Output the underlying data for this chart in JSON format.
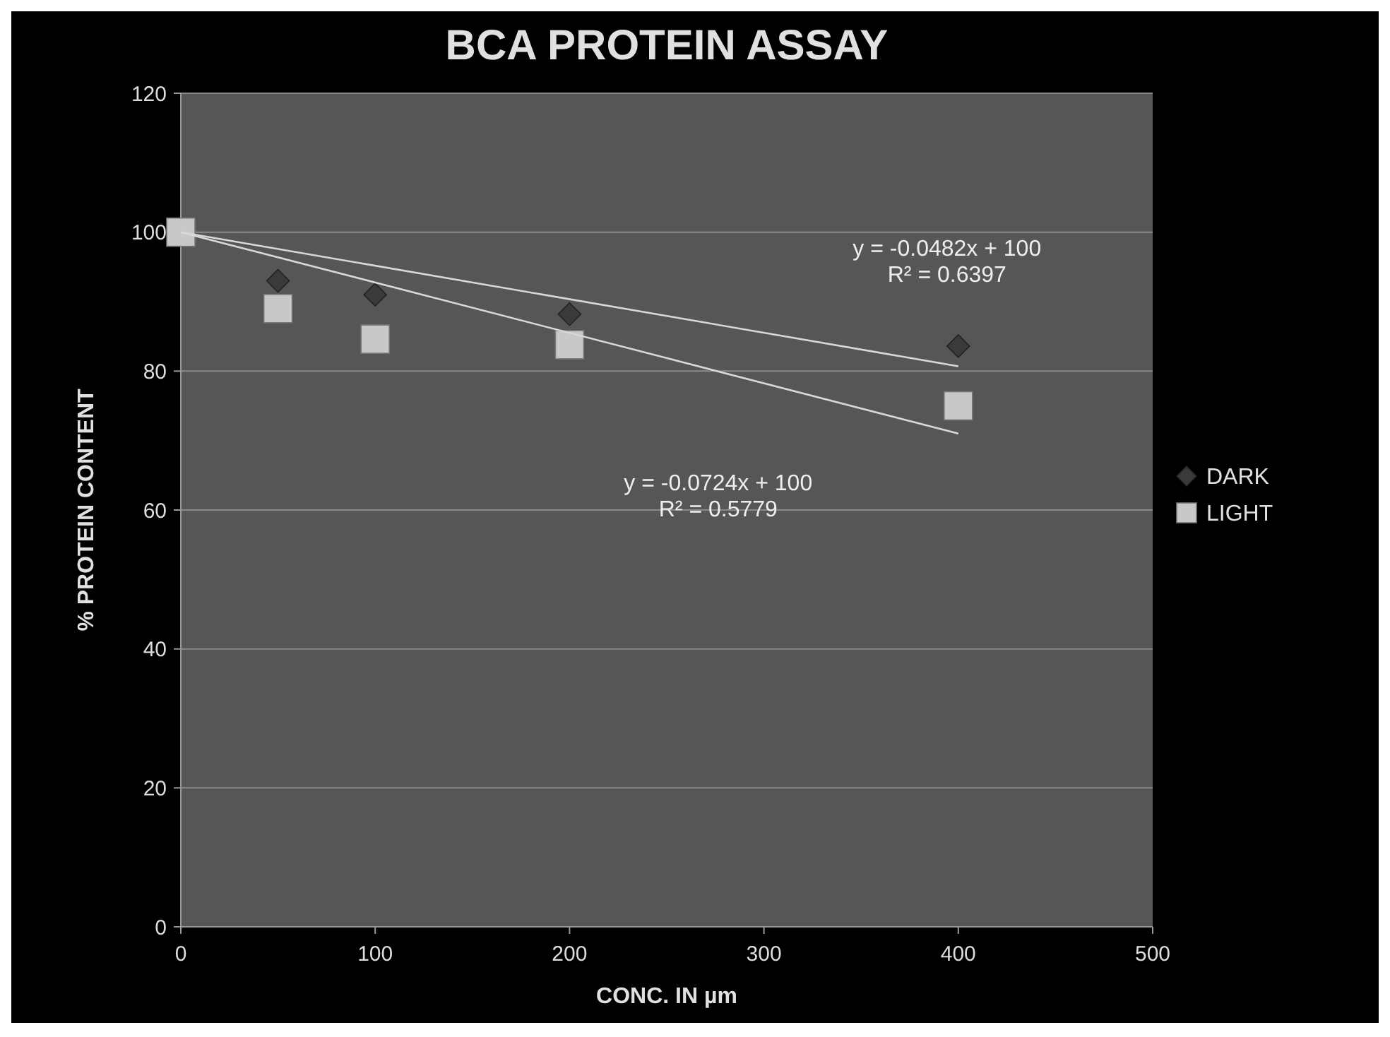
{
  "chart_data": {
    "type": "scatter",
    "title": "BCA PROTEIN ASSAY",
    "xlabel": "CONC. IN µm",
    "ylabel": "% PROTEIN CONTENT",
    "xlim": [
      0,
      500
    ],
    "xticks": [
      0,
      100,
      200,
      300,
      400,
      500
    ],
    "ylim": [
      0,
      120
    ],
    "yticks": [
      0,
      20,
      40,
      60,
      80,
      100,
      120
    ],
    "grid": "y",
    "legend": "right",
    "series": [
      {
        "name": "DARK",
        "color": "#3a3a3a",
        "marker": "diamond",
        "x": [
          50,
          100,
          200,
          400
        ],
        "values": [
          93,
          91,
          88.2,
          83.6
        ]
      },
      {
        "name": "LIGHT",
        "color": "#c8c8c8",
        "marker": "square",
        "x": [
          0,
          50,
          100,
          200,
          400
        ],
        "values": [
          100,
          89,
          84.6,
          83.8,
          75
        ]
      },
      {
        "type": "line",
        "color": "#d8d8d8",
        "marker": "none",
        "x": [
          0,
          400
        ],
        "values": [
          100,
          80.7
        ]
      },
      {
        "type": "line",
        "color": "#d8d8d8",
        "marker": "none",
        "x": [
          0,
          400
        ],
        "values": [
          100,
          71
        ]
      }
    ],
    "annotations": [
      "y = -0.0482x + 100\nR² = 0.6397",
      "y = -0.0724x + 100\nR² = 0.5779"
    ]
  }
}
